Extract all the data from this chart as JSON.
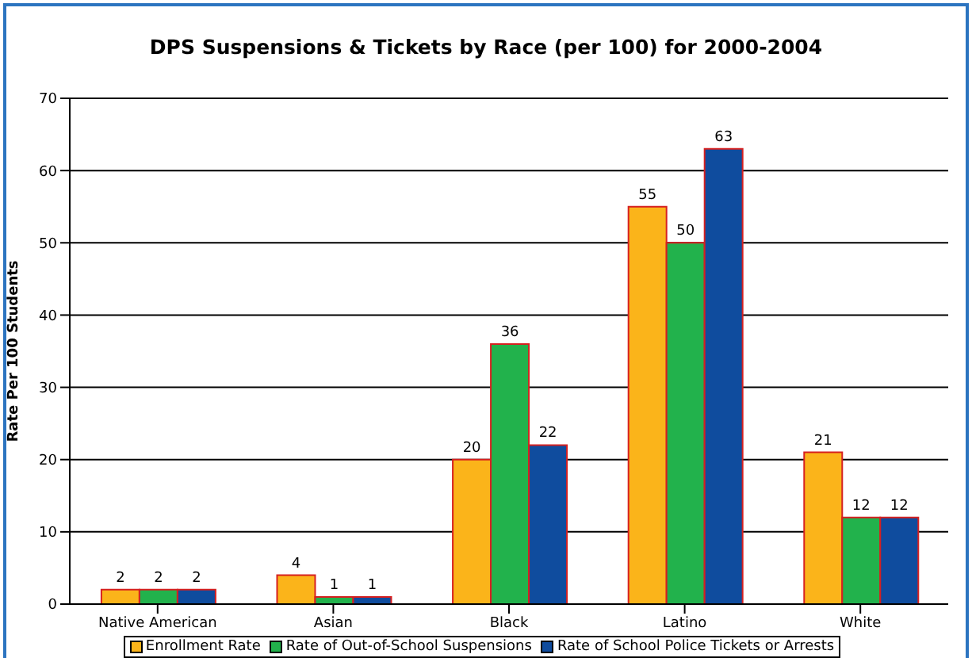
{
  "chart_data": {
    "type": "bar",
    "title": "DPS Suspensions & Tickets by Race (per 100) for 2000-2004",
    "ylabel": "Rate Per 100 Students",
    "categories": [
      "Native American",
      "Asian",
      "Black",
      "Latino",
      "White"
    ],
    "series": [
      {
        "name": "Enrollment Rate",
        "color": "#fbb41a",
        "values": [
          2,
          4,
          20,
          55,
          21
        ]
      },
      {
        "name": "Rate of Out-of-School Suspensions",
        "color": "#22b24c",
        "values": [
          2,
          1,
          36,
          50,
          12
        ]
      },
      {
        "name": "Rate of School Police Tickets or Arrests",
        "color": "#0f4c9e",
        "values": [
          2,
          1,
          22,
          63,
          12
        ]
      }
    ],
    "ylim": [
      0,
      70
    ],
    "yticks": [
      0,
      10,
      20,
      30,
      40,
      50,
      60,
      70
    ],
    "grid": "y",
    "legend": "bottom",
    "data_labels": true
  }
}
